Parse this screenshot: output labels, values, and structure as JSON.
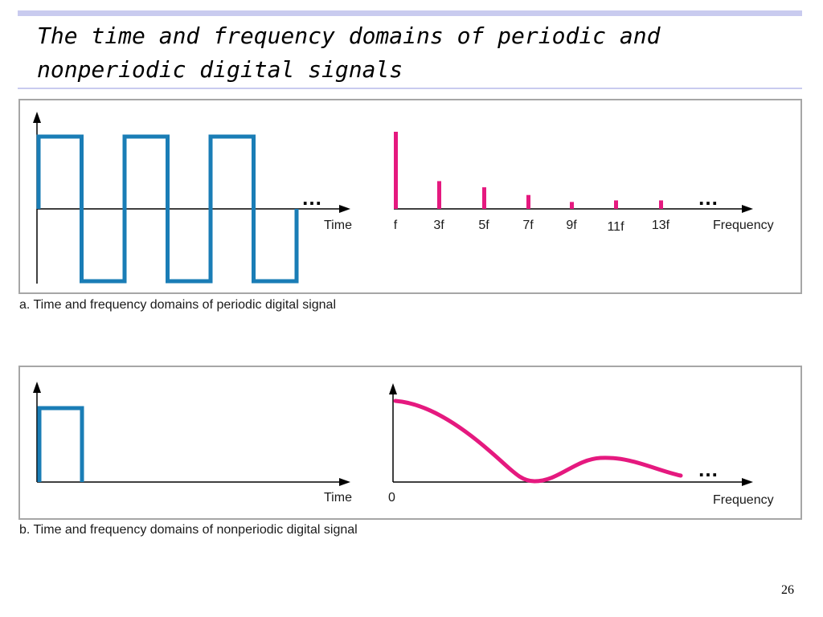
{
  "slide": {
    "title": "The time and frequency domains of periodic and nonperiodic digital signals",
    "page_number": "26"
  },
  "colors": {
    "time_signal": "#1a7db6",
    "frequency_signal": "#e5197f",
    "axis": "#000000",
    "title_bar": "#c9cbef",
    "panel_border": "#a6a6a6"
  },
  "panel_a": {
    "caption": "a. Time and frequency domains of periodic digital signal",
    "time_axis_label": "Time",
    "frequency_axis_label": "Frequency",
    "continuation": "…",
    "harmonic_labels": [
      "f",
      "3f",
      "5f",
      "7f",
      "9f",
      "11f",
      "13f"
    ],
    "harmonic_amplitudes": [
      1.0,
      0.36,
      0.28,
      0.18,
      0.09,
      0.11,
      0.11
    ],
    "square_wave_cycles": 3
  },
  "panel_b": {
    "caption": "b. Time and frequency domains of nonperiodic digital signal",
    "time_axis_label": "Time",
    "frequency_axis_label": "Frequency",
    "frequency_origin_label": "0",
    "continuation": "…"
  }
}
